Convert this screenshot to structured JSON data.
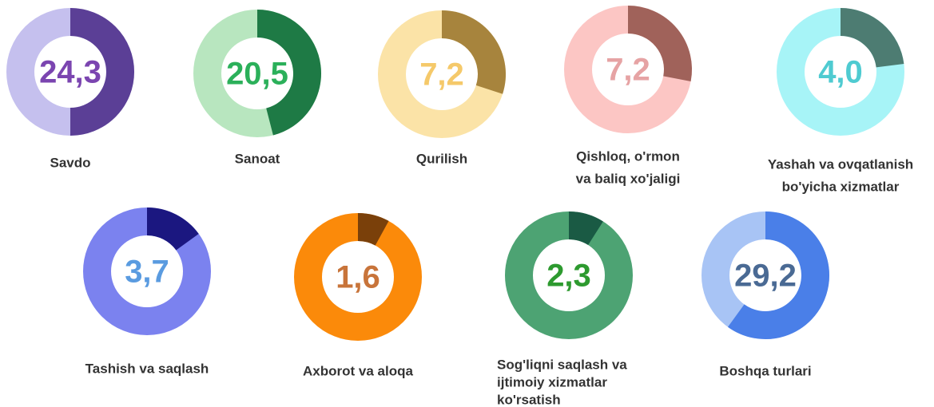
{
  "chart_data": {
    "type": "donut",
    "categories": [
      [
        "Savdo"
      ],
      [
        "Sanoat"
      ],
      [
        "Qurilish"
      ],
      [
        "Qishloq, o'rmon",
        "va baliq xo'jaligi"
      ],
      [
        "Yashah va ovqatlanish",
        "bo'yicha xizmatlar"
      ],
      [
        "Tashish va saqlash"
      ],
      [
        "Axborot va aloqa"
      ],
      [
        "Sog'liqni saqlash va",
        "ijtimoiy xizmatlar",
        "ko'rsatish"
      ],
      [
        "Boshqa turlari"
      ]
    ],
    "values": [
      24.3,
      20.5,
      7.2,
      7.2,
      4.0,
      3.7,
      1.6,
      2.3,
      29.2
    ],
    "value_labels": [
      "24,3",
      "20,5",
      "7,2",
      "7,2",
      "4,0",
      "3,7",
      "1,6",
      "2,3",
      "29,2"
    ],
    "shares": [
      50,
      46,
      30,
      28,
      23,
      15,
      8,
      9,
      60
    ],
    "light_colors": [
      "#c5c0ee",
      "#b8e6bf",
      "#fbe3a7",
      "#fcc6c4",
      "#a7f4f7",
      "#7b82ef",
      "#fb8a0a",
      "#4da373",
      "#a8c4f5"
    ],
    "dark_colors": [
      "#5b3f96",
      "#1e7a45",
      "#a7843d",
      "#a0625a",
      "#4d7c72",
      "#1b1780",
      "#7a400a",
      "#1a5a44",
      "#4a7fe8"
    ],
    "text_colors": [
      "#7b45b0",
      "#2bb05a",
      "#f5c96a",
      "#e6a3a4",
      "#4fcbd1",
      "#5a9be0",
      "#c8743a",
      "#2d9a2f",
      "#4a6a94"
    ]
  }
}
